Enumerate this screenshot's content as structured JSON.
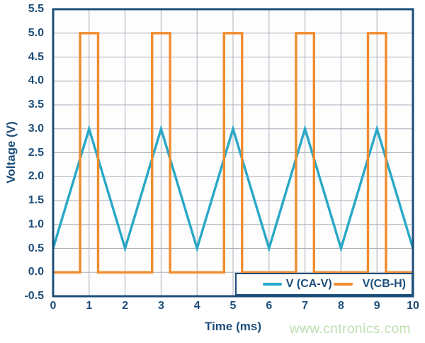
{
  "colors": {
    "frame": "#1d4e7a",
    "grid": "#a9aeb9",
    "text": "#1d4e7a",
    "plot_background": "#fdfdfe",
    "legend_background": "#ffffff"
  },
  "watermark": {
    "text": "www.cntronics.com",
    "color": "#bcdfb0"
  },
  "chart_data": {
    "type": "line",
    "title": "",
    "xlabel": "Time (ms)",
    "ylabel": "Voltage (V)",
    "xlim": [
      0,
      10
    ],
    "ylim": [
      -0.5,
      5.5
    ],
    "x_ticks": [
      0,
      1,
      2,
      3,
      4,
      5,
      6,
      7,
      8,
      9,
      10
    ],
    "x_tick_labels": [
      "0",
      "1",
      "2",
      "3",
      "4",
      "5",
      "6",
      "7",
      "8",
      "9",
      "10"
    ],
    "y_ticks": [
      5.5,
      5.0,
      4.5,
      4.0,
      3.5,
      3.0,
      2.5,
      2.0,
      1.5,
      1.0,
      0.5,
      0.0,
      -0.5
    ],
    "y_tick_labels": [
      "5.5",
      "5.0",
      "4.5",
      "4.0",
      "3.5",
      "3.0",
      "2.5",
      "2.0",
      "1.5",
      "1.0",
      "0.5",
      "0.0",
      "-0.5"
    ],
    "grid": true,
    "legend_position": "inside-bottom-right",
    "series": [
      {
        "name": "V (CA-V)",
        "color": "#28a8c6",
        "shape": "triangle-wave",
        "points": [
          [
            0,
            0.5
          ],
          [
            1,
            3.0
          ],
          [
            2,
            0.5
          ],
          [
            3,
            3.0
          ],
          [
            4,
            0.5
          ],
          [
            5,
            3.0
          ],
          [
            6,
            0.5
          ],
          [
            7,
            3.0
          ],
          [
            8,
            0.5
          ],
          [
            9,
            3.0
          ],
          [
            10,
            0.5
          ]
        ]
      },
      {
        "name": "V(CB-H)",
        "color": "#f08c2e",
        "shape": "pulse-train",
        "points": [
          [
            0,
            0
          ],
          [
            0.75,
            0
          ],
          [
            0.75,
            5
          ],
          [
            1.25,
            5
          ],
          [
            1.25,
            0
          ],
          [
            2.75,
            0
          ],
          [
            2.75,
            5
          ],
          [
            3.25,
            5
          ],
          [
            3.25,
            0
          ],
          [
            4.75,
            0
          ],
          [
            4.75,
            5
          ],
          [
            5.25,
            5
          ],
          [
            5.25,
            0
          ],
          [
            6.75,
            0
          ],
          [
            6.75,
            5
          ],
          [
            7.25,
            5
          ],
          [
            7.25,
            0
          ],
          [
            8.75,
            0
          ],
          [
            8.75,
            5
          ],
          [
            9.25,
            5
          ],
          [
            9.25,
            0
          ],
          [
            10,
            0
          ]
        ]
      }
    ]
  }
}
